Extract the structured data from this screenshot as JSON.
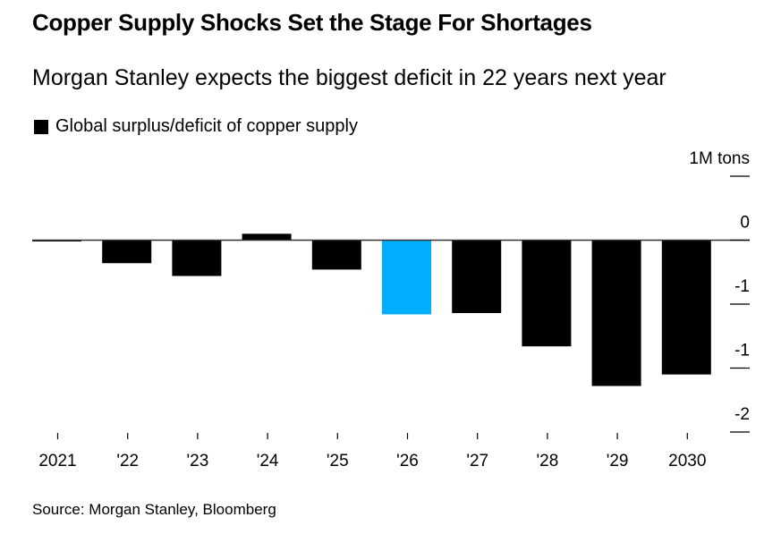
{
  "chart_data": {
    "type": "bar",
    "title": "Copper Supply Shocks Set the Stage For Shortages",
    "subtitle": "Morgan Stanley expects the biggest deficit in 22 years next year",
    "legend": [
      {
        "name": "Global surplus/deficit of copper supply",
        "color": "#000000"
      }
    ],
    "legend_placement": "top-left",
    "source": "Source: Morgan Stanley, Bloomberg",
    "categories": [
      "2021",
      "'22",
      "'23",
      "'24",
      "'25",
      "'26",
      "'27",
      "'28",
      "'29",
      "2030"
    ],
    "series": [
      {
        "name": "Global surplus/deficit of copper supply",
        "values": [
          -0.01,
          -0.18,
          -0.28,
          0.05,
          -0.23,
          -0.58,
          -0.57,
          -0.83,
          -1.14,
          -1.05
        ]
      }
    ],
    "highlight_index": 5,
    "colors": {
      "default": "#000000",
      "highlight": "#00AEFF"
    },
    "ylabel": "",
    "y_unit_label": "1M  tons",
    "ylim": [
      -1.5,
      0.5
    ],
    "y_ticks": [
      {
        "value": 0.5,
        "label": "1M  tons"
      },
      {
        "value": 0,
        "label": "0"
      },
      {
        "value": -0.5,
        "label": "-1"
      },
      {
        "value": -1.0,
        "label": "-1"
      },
      {
        "value": -1.5,
        "label": "-2"
      }
    ],
    "y_axis_position": "right",
    "grid": false
  }
}
